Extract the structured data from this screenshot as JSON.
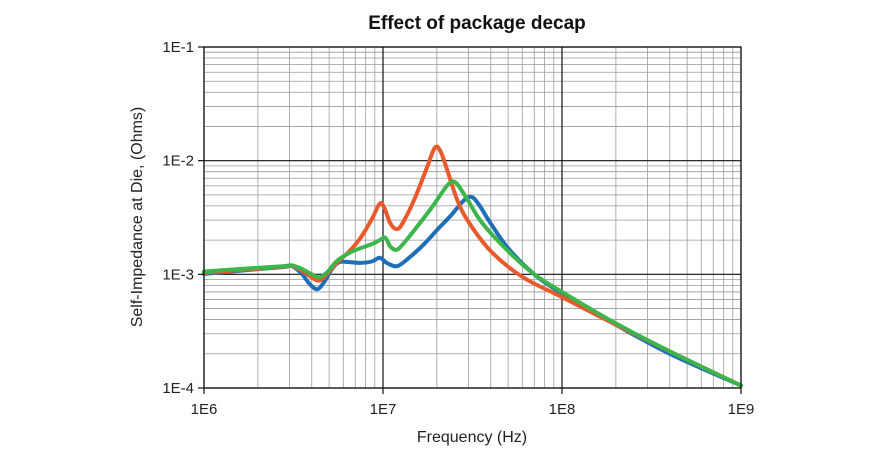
{
  "chart_data": {
    "type": "line",
    "title": "Effect of package decap",
    "xlabel": "Frequency (Hz)",
    "ylabel": "Self-Impedance at Die, (Ohms)",
    "x_scale": "log",
    "y_scale": "log",
    "xlim": [
      1000000,
      1000000000
    ],
    "ylim": [
      0.0001,
      0.1
    ],
    "grid": true,
    "x_ticks": [
      {
        "value": 1000000,
        "label": "1E6"
      },
      {
        "value": 10000000,
        "label": "1E7"
      },
      {
        "value": 100000000,
        "label": "1E8"
      },
      {
        "value": 1000000000,
        "label": "1E9"
      }
    ],
    "y_ticks": [
      {
        "value": 0.0001,
        "label": "1E-4"
      },
      {
        "value": 0.001,
        "label": "1E-3"
      },
      {
        "value": 0.01,
        "label": "1E-2"
      },
      {
        "value": 0.1,
        "label": "1E-1"
      }
    ],
    "series": [
      {
        "color": "#1f6fb8",
        "points": [
          [
            1000000,
            0.00101
          ],
          [
            2000000,
            0.00111
          ],
          [
            2800000,
            0.00116
          ],
          [
            3100000,
            0.00118
          ],
          [
            3500000,
            0.00102
          ],
          [
            3900000,
            0.00082
          ],
          [
            4300000,
            0.00074
          ],
          [
            4700000,
            0.00086
          ],
          [
            5200000,
            0.00112
          ],
          [
            5700000,
            0.00128
          ],
          [
            6500000,
            0.00128
          ],
          [
            7500000,
            0.00126
          ],
          [
            8700000,
            0.0013
          ],
          [
            9600000,
            0.0014
          ],
          [
            10500000,
            0.00126
          ],
          [
            12000000,
            0.00118
          ],
          [
            14000000,
            0.0014
          ],
          [
            17000000,
            0.00185
          ],
          [
            20000000,
            0.00245
          ],
          [
            24000000,
            0.0033
          ],
          [
            28000000,
            0.0044
          ],
          [
            31000000,
            0.0048
          ],
          [
            34000000,
            0.0042
          ],
          [
            40000000,
            0.0028
          ],
          [
            50000000,
            0.0017
          ],
          [
            70000000,
            0.001
          ],
          [
            100000000,
            0.00068
          ],
          [
            200000000,
            0.00036
          ],
          [
            400000000,
            0.0002
          ],
          [
            1000000000,
            0.000105
          ]
        ]
      },
      {
        "color": "#e85a2c",
        "points": [
          [
            1000000,
            0.00103
          ],
          [
            2000000,
            0.00112
          ],
          [
            2800000,
            0.00117
          ],
          [
            3100000,
            0.00119
          ],
          [
            3500000,
            0.00108
          ],
          [
            4000000,
            0.00094
          ],
          [
            4400000,
            0.00088
          ],
          [
            4800000,
            0.00098
          ],
          [
            5500000,
            0.00125
          ],
          [
            6500000,
            0.0016
          ],
          [
            7500000,
            0.0021
          ],
          [
            8700000,
            0.0031
          ],
          [
            9600000,
            0.0042
          ],
          [
            10200000,
            0.0038
          ],
          [
            11000000,
            0.0028
          ],
          [
            12000000,
            0.0025
          ],
          [
            13000000,
            0.0029
          ],
          [
            15000000,
            0.0046
          ],
          [
            17500000,
            0.0085
          ],
          [
            19500000,
            0.013
          ],
          [
            21000000,
            0.012
          ],
          [
            23000000,
            0.008
          ],
          [
            26000000,
            0.0045
          ],
          [
            30000000,
            0.0029
          ],
          [
            40000000,
            0.0016
          ],
          [
            60000000,
            0.00095
          ],
          [
            100000000,
            0.00063
          ],
          [
            200000000,
            0.00036
          ],
          [
            400000000,
            0.00021
          ],
          [
            1000000000,
            0.000105
          ]
        ]
      },
      {
        "color": "#3cb54a",
        "points": [
          [
            1000000,
            0.00106
          ],
          [
            2000000,
            0.00114
          ],
          [
            2800000,
            0.00118
          ],
          [
            3100000,
            0.0012
          ],
          [
            3500000,
            0.00112
          ],
          [
            4000000,
            0.001
          ],
          [
            4400000,
            0.00094
          ],
          [
            4900000,
            0.00105
          ],
          [
            5500000,
            0.0013
          ],
          [
            6500000,
            0.00155
          ],
          [
            7500000,
            0.0017
          ],
          [
            8700000,
            0.00185
          ],
          [
            9600000,
            0.002
          ],
          [
            10300000,
            0.0021
          ],
          [
            11000000,
            0.00175
          ],
          [
            12000000,
            0.00165
          ],
          [
            13500000,
            0.002
          ],
          [
            16000000,
            0.0028
          ],
          [
            19000000,
            0.004
          ],
          [
            22000000,
            0.0056
          ],
          [
            24000000,
            0.0065
          ],
          [
            26000000,
            0.0062
          ],
          [
            30000000,
            0.0044
          ],
          [
            36000000,
            0.0028
          ],
          [
            50000000,
            0.0016
          ],
          [
            70000000,
            0.001
          ],
          [
            100000000,
            0.0007
          ],
          [
            200000000,
            0.00037
          ],
          [
            400000000,
            0.00021
          ],
          [
            1000000000,
            0.000105
          ]
        ]
      }
    ]
  }
}
